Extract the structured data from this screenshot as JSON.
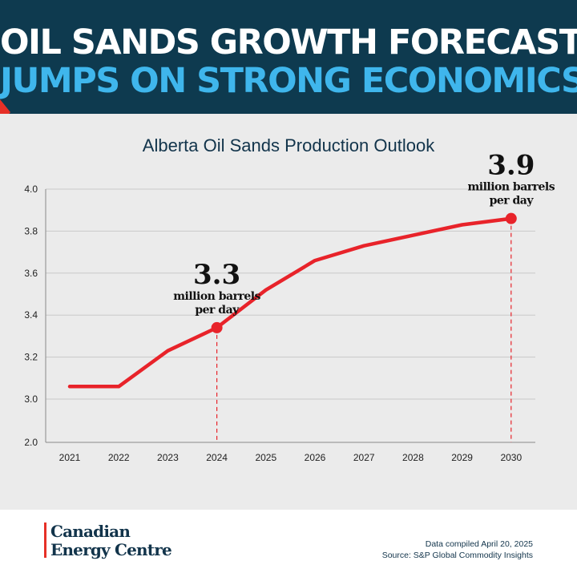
{
  "header": {
    "title_line1": "OIL SANDS GROWTH FORECAST",
    "title_line2": "JUMPS ON STRONG ECONOMICS",
    "colors": {
      "background": "#0e3a4f",
      "line1": "#ffffff",
      "line2": "#3fb6ec",
      "accent": "#e63027"
    }
  },
  "chart_data": {
    "type": "line",
    "title": "Alberta Oil Sands Production Outlook",
    "xlabel": "",
    "ylabel": "",
    "x": [
      "2021",
      "2022",
      "2023",
      "2024",
      "2025",
      "2026",
      "2027",
      "2028",
      "2029",
      "2030"
    ],
    "series": [
      {
        "values": [
          3.06,
          3.06,
          3.23,
          3.34,
          3.52,
          3.66,
          3.73,
          3.78,
          3.83,
          3.86
        ],
        "color": "#e8232a"
      }
    ],
    "y_ticks": [
      "2.0",
      "3.0",
      "3.2",
      "3.4",
      "3.6",
      "3.8",
      "4.0"
    ],
    "ylim": [
      2.9,
      4.0
    ],
    "y_axis_break": "2.0 shown at bottom of a truncated axis",
    "grid": true,
    "annotations": [
      {
        "x": "2024",
        "value": 3.34,
        "big": "3.3",
        "line1": "million barrels",
        "line2": "per day"
      },
      {
        "x": "2030",
        "value": 3.86,
        "big": "3.9",
        "line1": "million barrels",
        "line2": "per day"
      }
    ]
  },
  "footer": {
    "logo_line1": "Canadian",
    "logo_line2": "Energy Centre",
    "note_line1": "Data compiled April 20, 2025",
    "note_line2": "Source: S&P Global Commodity Insights"
  }
}
